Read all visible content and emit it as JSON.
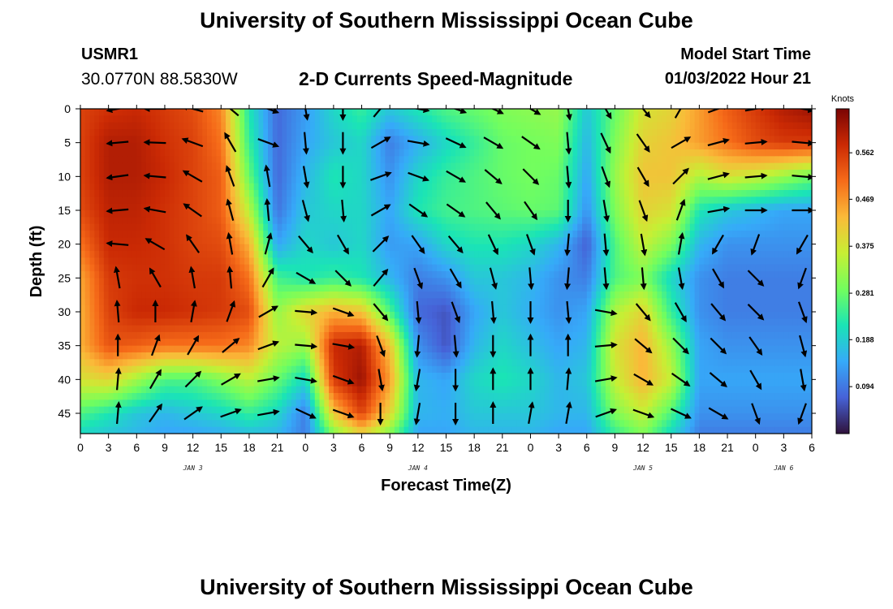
{
  "page": {
    "title_top": "University of Southern Mississippi Ocean Cube",
    "title_bottom": "University of Southern Mississippi Ocean Cube",
    "station_id": "USMR1",
    "station_coords": "30.0770N  88.5830W",
    "subtitle": "2-D Currents Speed-Magnitude",
    "model_label": "Model Start Time",
    "model_value": "01/03/2022 Hour 21"
  },
  "chart_data": {
    "type": "heatmap",
    "title": "2-D Currents Speed-Magnitude",
    "xlabel": "Forecast Time(Z)",
    "ylabel": "Depth (ft)",
    "x_tick_labels": [
      "0",
      "3",
      "6",
      "9",
      "12",
      "15",
      "18",
      "21",
      "0",
      "3",
      "6",
      "9",
      "12",
      "15",
      "18",
      "21",
      "0",
      "3",
      "6",
      "9",
      "12",
      "15",
      "18",
      "21",
      "0",
      "3",
      "6"
    ],
    "x_range_hours": [
      0,
      78
    ],
    "day_labels": [
      {
        "label": "JAN 3",
        "hour": 12
      },
      {
        "label": "JAN 4",
        "hour": 36
      },
      {
        "label": "JAN 5",
        "hour": 60
      },
      {
        "label": "JAN 6",
        "hour": 75
      }
    ],
    "y_ticks": [
      0,
      5,
      10,
      15,
      20,
      25,
      30,
      35,
      40,
      45
    ],
    "y_range_ft": [
      0,
      48
    ],
    "colorbar": {
      "title": "Knots",
      "ticks": [
        0.562,
        0.469,
        0.375,
        0.281,
        0.188,
        0.094
      ],
      "range": [
        0.0,
        0.65
      ],
      "colors": [
        "#30123b",
        "#4662d7",
        "#36aaf9",
        "#1ae4b6",
        "#72fe5e",
        "#c7ef34",
        "#faba39",
        "#f66b19",
        "#cb2a04",
        "#7a0403"
      ]
    },
    "speed_nodes_depths_ft": [
      0,
      5,
      10,
      15,
      20,
      25,
      30,
      35,
      40,
      45,
      48
    ],
    "speed_nodes": [
      {
        "hour": 0,
        "speeds": [
          0.55,
          0.55,
          0.55,
          0.54,
          0.5,
          0.45,
          0.44,
          0.44,
          0.38,
          0.26,
          0.2
        ]
      },
      {
        "hour": 3,
        "speeds": [
          0.57,
          0.6,
          0.6,
          0.59,
          0.58,
          0.56,
          0.55,
          0.53,
          0.4,
          0.22,
          0.18
        ]
      },
      {
        "hour": 6,
        "speeds": [
          0.58,
          0.6,
          0.6,
          0.59,
          0.58,
          0.57,
          0.58,
          0.52,
          0.33,
          0.18,
          0.16
        ]
      },
      {
        "hour": 9,
        "speeds": [
          0.56,
          0.57,
          0.58,
          0.57,
          0.57,
          0.57,
          0.58,
          0.5,
          0.26,
          0.16,
          0.14
        ]
      },
      {
        "hour": 12,
        "speeds": [
          0.54,
          0.55,
          0.55,
          0.55,
          0.55,
          0.56,
          0.57,
          0.5,
          0.26,
          0.18,
          0.14
        ]
      },
      {
        "hour": 15,
        "speeds": [
          0.48,
          0.5,
          0.52,
          0.52,
          0.54,
          0.56,
          0.56,
          0.5,
          0.3,
          0.2,
          0.15
        ]
      },
      {
        "hour": 18,
        "speeds": [
          0.22,
          0.24,
          0.28,
          0.35,
          0.44,
          0.5,
          0.54,
          0.48,
          0.35,
          0.24,
          0.17
        ]
      },
      {
        "hour": 21,
        "speeds": [
          0.08,
          0.08,
          0.08,
          0.09,
          0.14,
          0.25,
          0.32,
          0.35,
          0.28,
          0.2,
          0.16
        ]
      },
      {
        "hour": 24,
        "speeds": [
          0.13,
          0.14,
          0.16,
          0.18,
          0.2,
          0.22,
          0.4,
          0.32,
          0.2,
          0.1,
          0.1
        ]
      },
      {
        "hour": 27,
        "speeds": [
          0.2,
          0.18,
          0.22,
          0.2,
          0.18,
          0.24,
          0.44,
          0.58,
          0.56,
          0.42,
          0.3
        ]
      },
      {
        "hour": 30,
        "speeds": [
          0.24,
          0.2,
          0.2,
          0.2,
          0.2,
          0.22,
          0.42,
          0.6,
          0.62,
          0.55,
          0.4
        ]
      },
      {
        "hour": 33,
        "speeds": [
          0.18,
          0.1,
          0.12,
          0.14,
          0.13,
          0.16,
          0.26,
          0.42,
          0.46,
          0.4,
          0.3
        ]
      },
      {
        "hour": 36,
        "speeds": [
          0.22,
          0.15,
          0.2,
          0.22,
          0.14,
          0.1,
          0.08,
          0.12,
          0.16,
          0.16,
          0.14
        ]
      },
      {
        "hour": 39,
        "speeds": [
          0.26,
          0.2,
          0.24,
          0.25,
          0.2,
          0.12,
          0.06,
          0.06,
          0.14,
          0.15,
          0.14
        ]
      },
      {
        "hour": 42,
        "speeds": [
          0.28,
          0.24,
          0.26,
          0.26,
          0.22,
          0.18,
          0.14,
          0.16,
          0.2,
          0.18,
          0.16
        ]
      },
      {
        "hour": 45,
        "speeds": [
          0.3,
          0.28,
          0.28,
          0.27,
          0.22,
          0.18,
          0.18,
          0.2,
          0.22,
          0.18,
          0.16
        ]
      },
      {
        "hour": 48,
        "speeds": [
          0.31,
          0.29,
          0.29,
          0.28,
          0.2,
          0.16,
          0.15,
          0.17,
          0.2,
          0.18,
          0.16
        ]
      },
      {
        "hour": 51,
        "speeds": [
          0.32,
          0.3,
          0.28,
          0.27,
          0.16,
          0.12,
          0.12,
          0.14,
          0.16,
          0.16,
          0.14
        ]
      },
      {
        "hour": 54,
        "speeds": [
          0.18,
          0.16,
          0.14,
          0.12,
          0.07,
          0.1,
          0.14,
          0.16,
          0.18,
          0.16,
          0.14
        ]
      },
      {
        "hour": 57,
        "speeds": [
          0.28,
          0.3,
          0.32,
          0.3,
          0.26,
          0.26,
          0.34,
          0.38,
          0.36,
          0.3,
          0.24
        ]
      },
      {
        "hour": 60,
        "speeds": [
          0.38,
          0.4,
          0.42,
          0.4,
          0.36,
          0.3,
          0.4,
          0.44,
          0.44,
          0.36,
          0.3
        ]
      },
      {
        "hour": 63,
        "speeds": [
          0.4,
          0.42,
          0.42,
          0.38,
          0.3,
          0.2,
          0.24,
          0.32,
          0.36,
          0.26,
          0.2
        ]
      },
      {
        "hour": 66,
        "speeds": [
          0.46,
          0.46,
          0.34,
          0.22,
          0.16,
          0.12,
          0.12,
          0.14,
          0.14,
          0.12,
          0.1
        ]
      },
      {
        "hour": 69,
        "speeds": [
          0.52,
          0.5,
          0.38,
          0.18,
          0.12,
          0.1,
          0.1,
          0.12,
          0.14,
          0.12,
          0.1
        ]
      },
      {
        "hour": 72,
        "speeds": [
          0.56,
          0.54,
          0.36,
          0.16,
          0.12,
          0.1,
          0.1,
          0.12,
          0.14,
          0.12,
          0.1
        ]
      },
      {
        "hour": 75,
        "speeds": [
          0.6,
          0.56,
          0.32,
          0.14,
          0.12,
          0.1,
          0.1,
          0.12,
          0.14,
          0.12,
          0.1
        ]
      },
      {
        "hour": 78,
        "speeds": [
          0.62,
          0.56,
          0.28,
          0.14,
          0.12,
          0.1,
          0.1,
          0.12,
          0.14,
          0.12,
          0.1
        ]
      }
    ],
    "vector_depths_ft": [
      0,
      5,
      10,
      15,
      20,
      25,
      30,
      35,
      40,
      45
    ],
    "vectors": [
      {
        "hour": 4,
        "dir_deg": [
          260,
          265,
          262,
          265,
          275,
          350,
          355,
          0,
          5,
          5
        ]
      },
      {
        "hour": 8,
        "dir_deg": [
          270,
          272,
          275,
          280,
          300,
          330,
          0,
          20,
          30,
          35
        ]
      },
      {
        "hour": 12,
        "dir_deg": [
          285,
          290,
          300,
          305,
          325,
          350,
          10,
          30,
          45,
          55
        ]
      },
      {
        "hour": 16,
        "dir_deg": [
          310,
          330,
          340,
          345,
          350,
          355,
          20,
          50,
          60,
          70
        ]
      },
      {
        "hour": 20,
        "dir_deg": [
          110,
          110,
          350,
          355,
          15,
          30,
          60,
          70,
          80,
          80
        ]
      },
      {
        "hour": 24,
        "dir_deg": [
          170,
          175,
          170,
          165,
          140,
          120,
          95,
          95,
          100,
          115
        ]
      },
      {
        "hour": 28,
        "dir_deg": [
          180,
          180,
          180,
          175,
          150,
          135,
          110,
          100,
          110,
          110
        ]
      },
      {
        "hour": 32,
        "dir_deg": [
          40,
          60,
          70,
          60,
          45,
          40,
          140,
          160,
          170,
          180
        ]
      },
      {
        "hour": 36,
        "dir_deg": [
          100,
          100,
          110,
          125,
          145,
          160,
          175,
          185,
          190,
          190
        ]
      },
      {
        "hour": 40,
        "dir_deg": [
          110,
          115,
          120,
          125,
          140,
          150,
          160,
          175,
          180,
          180
        ]
      },
      {
        "hour": 44,
        "dir_deg": [
          115,
          120,
          130,
          140,
          155,
          165,
          175,
          180,
          0,
          0
        ]
      },
      {
        "hour": 48,
        "dir_deg": [
          120,
          125,
          135,
          145,
          160,
          175,
          180,
          0,
          0,
          10
        ]
      },
      {
        "hour": 52,
        "dir_deg": [
          170,
          175,
          175,
          180,
          185,
          185,
          175,
          0,
          5,
          10
        ]
      },
      {
        "hour": 56,
        "dir_deg": [
          150,
          155,
          160,
          170,
          175,
          175,
          100,
          85,
          80,
          70
        ]
      },
      {
        "hour": 60,
        "dir_deg": [
          140,
          145,
          150,
          160,
          170,
          175,
          140,
          130,
          120,
          110
        ]
      },
      {
        "hour": 64,
        "dir_deg": [
          30,
          60,
          45,
          20,
          10,
          170,
          150,
          135,
          125,
          115
        ]
      },
      {
        "hour": 68,
        "dir_deg": [
          70,
          75,
          75,
          80,
          210,
          150,
          140,
          135,
          130,
          120
        ]
      },
      {
        "hour": 72,
        "dir_deg": [
          80,
          85,
          85,
          90,
          200,
          135,
          135,
          145,
          150,
          160
        ]
      },
      {
        "hour": 77,
        "dir_deg": [
          100,
          95,
          95,
          90,
          210,
          200,
          160,
          165,
          170,
          200
        ]
      }
    ]
  }
}
